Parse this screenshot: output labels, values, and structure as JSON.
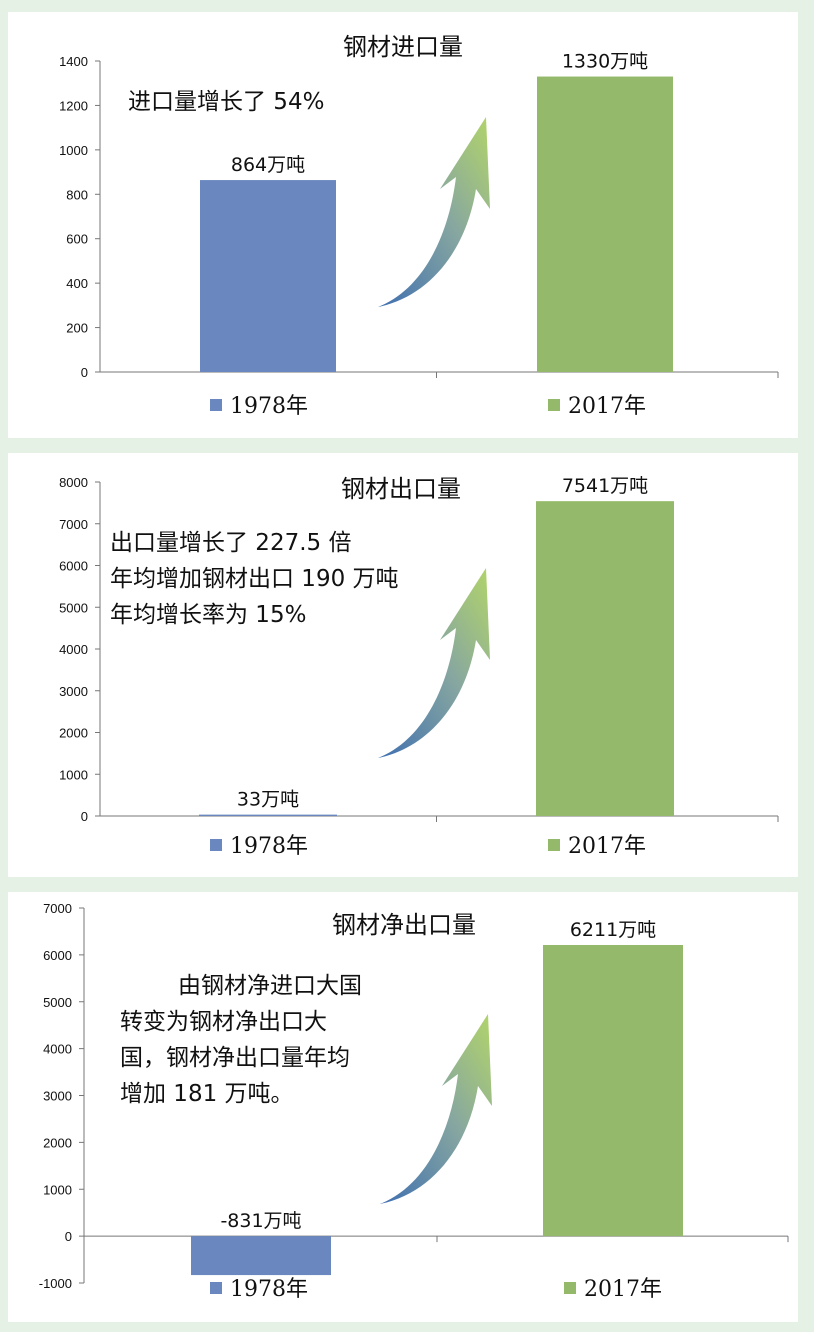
{
  "colors": {
    "series_1978": "#6a88bf",
    "series_2017": "#94b96a",
    "page_bg": "#e6f1e6"
  },
  "legend": {
    "label_1978": "1978年",
    "label_2017": "2017年"
  },
  "chart_data": [
    {
      "type": "bar",
      "title": "钢材进口量",
      "annotation": [
        "进口量增长了 54%"
      ],
      "categories": [
        "1978年",
        "2017年"
      ],
      "values": [
        864,
        1330
      ],
      "data_labels": [
        "864万吨",
        "1330万吨"
      ],
      "ylim": [
        0,
        1400
      ],
      "yticks": [
        "0",
        "200",
        "400",
        "600",
        "800",
        "1000",
        "1200",
        "1400"
      ],
      "legend_position": "bottom"
    },
    {
      "type": "bar",
      "title": "钢材出口量",
      "annotation": [
        "出口量增长了 227.5 倍",
        "年均增加钢材出口 190 万吨",
        "年均增长率为 15%"
      ],
      "categories": [
        "1978年",
        "2017年"
      ],
      "values": [
        33,
        7541
      ],
      "data_labels": [
        "33万吨",
        "7541万吨"
      ],
      "ylim": [
        0,
        8000
      ],
      "yticks": [
        "0",
        "1000",
        "2000",
        "3000",
        "4000",
        "5000",
        "6000",
        "7000",
        "8000"
      ],
      "legend_position": "bottom"
    },
    {
      "type": "bar",
      "title": "钢材净出口量",
      "annotation": [
        "由钢材净进口大国",
        "转变为钢材净出口大",
        "国，钢材净出口量年均",
        "增加 181 万吨。"
      ],
      "categories": [
        "1978年",
        "2017年"
      ],
      "values": [
        -831,
        6211
      ],
      "data_labels": [
        "-831万吨",
        "6211万吨"
      ],
      "ylim": [
        -1000,
        7000
      ],
      "yticks": [
        "-1000",
        "0",
        "1000",
        "2000",
        "3000",
        "4000",
        "5000",
        "6000",
        "7000"
      ],
      "legend_position": "bottom"
    }
  ]
}
